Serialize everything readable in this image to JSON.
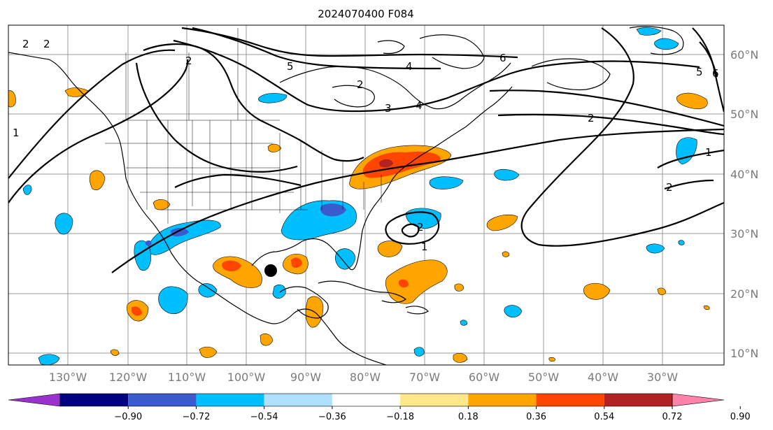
{
  "title": "2024070400 F084",
  "lon_labels": [
    "130°W",
    "120°W",
    "110°W",
    "100°W",
    "90°W",
    "80°W",
    "70°W",
    "60°W",
    "50°W",
    "40°W",
    "30°W"
  ],
  "lat_labels": [
    "60°N",
    "50°N",
    "40°N",
    "30°N",
    "20°N",
    "10°N"
  ],
  "colorbar": {
    "labels": [
      "−0.90",
      "−0.72",
      "−0.54",
      "−0.36",
      "−0.18",
      "0.18",
      "0.36",
      "0.54",
      "0.72",
      "0.90"
    ],
    "colors": [
      "#9932cc",
      "#000080",
      "#3a5bcd",
      "#00bfff",
      "#afe0ff",
      "#ffffff",
      "#ffe78a",
      "#ffa500",
      "#ff4500",
      "#b22222",
      "#ff82ab"
    ]
  },
  "contour_labels": [
    "2",
    "2",
    "2",
    "5",
    "4",
    "6",
    "2",
    "3",
    "4",
    "2",
    "1",
    "2",
    "2",
    "1",
    "5",
    "6",
    "1"
  ],
  "marker": "storm-center-marker"
}
